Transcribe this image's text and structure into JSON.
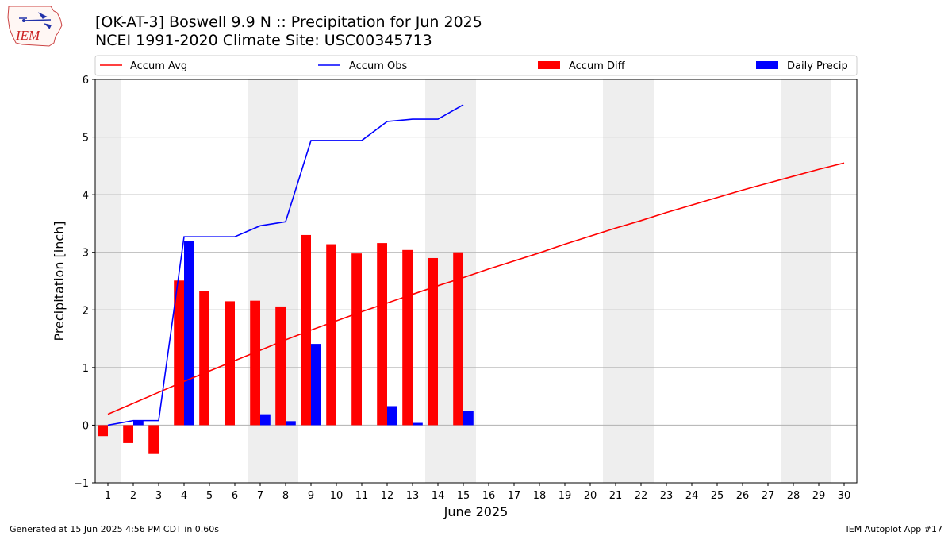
{
  "header": {
    "title": "[OK-AT-3] Boswell 9.9 N :: Precipitation for Jun 2025",
    "subtitle": "NCEI 1991-2020 Climate Site: USC00345713",
    "logo_text": "IEM"
  },
  "footer": {
    "left": "Generated at 15 Jun 2025 4:56 PM CDT in 0.60s",
    "right": "IEM Autoplot App #17"
  },
  "colors": {
    "accum_avg": "#ff0000",
    "accum_obs": "#0000ff",
    "accum_diff": "#ff0000",
    "daily_precip": "#0000ff",
    "weekend_shade": "#eeeeee",
    "grid": "#b0b0b0"
  },
  "chart_data": {
    "type": "bar",
    "title": "[OK-AT-3] Boswell 9.9 N :: Precipitation for Jun 2025",
    "subtitle": "NCEI 1991-2020 Climate Site: USC00345713",
    "xlabel": "June 2025",
    "ylabel": "Precipitation [inch]",
    "ylim": [
      -1,
      6
    ],
    "yticks": [
      -1,
      0,
      1,
      2,
      3,
      4,
      5,
      6
    ],
    "ytick_labels": [
      "−1",
      "0",
      "1",
      "2",
      "3",
      "4",
      "5",
      "6"
    ],
    "x": [
      1,
      2,
      3,
      4,
      5,
      6,
      7,
      8,
      9,
      10,
      11,
      12,
      13,
      14,
      15,
      16,
      17,
      18,
      19,
      20,
      21,
      22,
      23,
      24,
      25,
      26,
      27,
      28,
      29,
      30
    ],
    "grid": "horizontal",
    "legend_position": "top, above plot",
    "weekend_shading": [
      [
        1,
        1
      ],
      [
        7,
        8
      ],
      [
        14,
        15
      ],
      [
        21,
        22
      ],
      [
        28,
        29
      ]
    ],
    "series": [
      {
        "name": "Accum Avg",
        "kind": "line",
        "x": [
          1,
          2,
          3,
          4,
          5,
          6,
          7,
          8,
          9,
          10,
          11,
          12,
          13,
          14,
          15,
          16,
          17,
          18,
          19,
          20,
          21,
          22,
          23,
          24,
          25,
          26,
          27,
          28,
          29,
          30
        ],
        "values": [
          0.19,
          0.38,
          0.57,
          0.76,
          0.94,
          1.12,
          1.3,
          1.48,
          1.65,
          1.81,
          1.97,
          2.12,
          2.27,
          2.42,
          2.56,
          2.71,
          2.85,
          2.99,
          3.14,
          3.28,
          3.42,
          3.55,
          3.69,
          3.82,
          3.95,
          4.08,
          4.2,
          4.32,
          4.44,
          4.55
        ]
      },
      {
        "name": "Accum Obs",
        "kind": "line",
        "x": [
          1,
          2,
          3,
          4,
          5,
          6,
          7,
          8,
          9,
          10,
          11,
          12,
          13,
          14,
          15
        ],
        "values": [
          0.0,
          0.08,
          0.08,
          3.27,
          3.27,
          3.27,
          3.46,
          3.53,
          4.94,
          4.94,
          4.94,
          5.27,
          5.31,
          5.31,
          5.56
        ]
      },
      {
        "name": "Accum Diff",
        "kind": "bar",
        "x": [
          1,
          2,
          3,
          4,
          5,
          6,
          7,
          8,
          9,
          10,
          11,
          12,
          13,
          14,
          15
        ],
        "values": [
          -0.19,
          -0.31,
          -0.5,
          2.51,
          2.33,
          2.15,
          2.16,
          2.06,
          3.3,
          3.14,
          2.98,
          3.16,
          3.04,
          2.9,
          3.0
        ]
      },
      {
        "name": "Daily Precip",
        "kind": "bar",
        "x": [
          1,
          2,
          3,
          4,
          5,
          6,
          7,
          8,
          9,
          10,
          11,
          12,
          13,
          14,
          15
        ],
        "values": [
          0.0,
          0.08,
          0.0,
          3.19,
          0.0,
          0.0,
          0.19,
          0.07,
          1.41,
          0.0,
          0.0,
          0.33,
          0.04,
          0.0,
          0.25
        ]
      }
    ]
  }
}
